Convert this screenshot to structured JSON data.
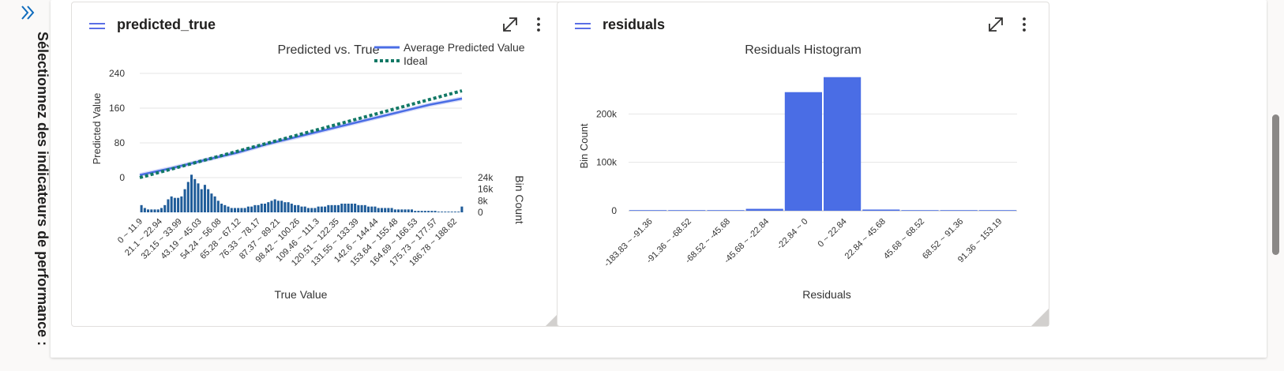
{
  "sidebar": {
    "title": "Sélectionnez des indicateurs de performance :",
    "expand_icon": "chevron-double-right-icon"
  },
  "cards": {
    "predicted_true": {
      "title": "predicted_true",
      "menu_icon": "hamburger-icon",
      "maximize_icon": "expand-diagonal-icon",
      "more_icon": "more-vertical-icon"
    },
    "residuals": {
      "title": "residuals",
      "menu_icon": "hamburger-icon",
      "maximize_icon": "expand-diagonal-icon",
      "more_icon": "more-vertical-icon"
    }
  },
  "colors": {
    "accent": "#5b6fe6",
    "series_blue": "#4a6de5",
    "ideal_green": "#117865",
    "bin_bar": "#1f5c99",
    "band": "#c7cdf6"
  },
  "chart_data": [
    {
      "type": "line",
      "title": "Predicted vs. True",
      "xlabel": "True Value",
      "ylabel": "Predicted Value",
      "y2label": "Bin Count",
      "ylim": [
        0,
        240
      ],
      "yticks": [
        "0",
        "80",
        "160",
        "240"
      ],
      "y2ticks": [
        "0",
        "8k",
        "16k",
        "24k"
      ],
      "legend": [
        "Average Predicted Value",
        "Ideal"
      ],
      "legend_position": "top-right",
      "grid": true,
      "categories": [
        "0 ~ 11.9",
        "21.1 ~ 22.94",
        "32.15 ~ 33.99",
        "43.19 ~ 45.03",
        "54.24 ~ 56.08",
        "65.28 ~ 67.12",
        "76.33 ~ 78.17",
        "87.37 ~ 89.21",
        "98.42 ~ 100.26",
        "109.46 ~ 111.3",
        "120.51 ~ 122.35",
        "131.55 ~ 133.39",
        "142.6 ~ 144.44",
        "153.64 ~ 155.48",
        "164.69 ~ 166.53",
        "175.73 ~ 177.57",
        "186.78 ~ 188.62"
      ],
      "series": [
        {
          "name": "Average Predicted Value",
          "x": [
            0,
            20,
            40,
            60,
            80,
            100,
            120,
            140,
            160,
            180,
            200
          ],
          "values": [
            6,
            22,
            40,
            57,
            78,
            96,
            114,
            132,
            150,
            168,
            182
          ]
        },
        {
          "name": "Ideal",
          "x": [
            0,
            200
          ],
          "values": [
            0,
            200
          ]
        }
      ],
      "bin_counts": [
        5,
        3,
        2,
        2,
        2,
        2,
        3,
        5,
        9,
        11,
        10,
        10,
        11,
        16,
        21,
        26,
        23,
        20,
        16,
        19,
        16,
        13,
        11,
        8,
        6,
        5,
        4,
        3,
        3,
        3,
        3,
        3,
        4,
        4,
        5,
        5,
        6,
        6,
        7,
        8,
        9,
        8,
        8,
        7,
        7,
        6,
        5,
        5,
        4,
        4,
        3,
        3,
        3,
        4,
        4,
        4,
        5,
        5,
        5,
        5,
        6,
        6,
        6,
        6,
        6,
        5,
        5,
        5,
        4,
        4,
        4,
        3,
        3,
        3,
        3,
        3,
        2,
        2,
        2,
        2,
        2,
        2,
        1,
        1,
        1,
        1,
        1,
        1,
        1,
        0.5,
        0.5,
        0.5,
        0.5,
        0.5,
        0.5,
        0.5,
        4
      ]
    },
    {
      "type": "bar",
      "title": "Residuals Histogram",
      "xlabel": "Residuals",
      "ylabel": "Bin Count",
      "ylim": [
        0,
        300000
      ],
      "yticks": [
        "0",
        "100k",
        "200k"
      ],
      "grid": true,
      "categories": [
        "-183.83 ~ -91.36",
        "-91.36 ~ -68.52",
        "-68.52 ~ -45.68",
        "-45.68 ~ -22.84",
        "-22.84 ~ 0",
        "0 ~ 22.84",
        "22.84 ~ 45.68",
        "45.68 ~ 68.52",
        "68.52 ~ 91.36",
        "91.36 ~ 153.19"
      ],
      "values": [
        300,
        600,
        1200,
        4000,
        245000,
        276000,
        2500,
        900,
        400,
        200
      ]
    }
  ]
}
